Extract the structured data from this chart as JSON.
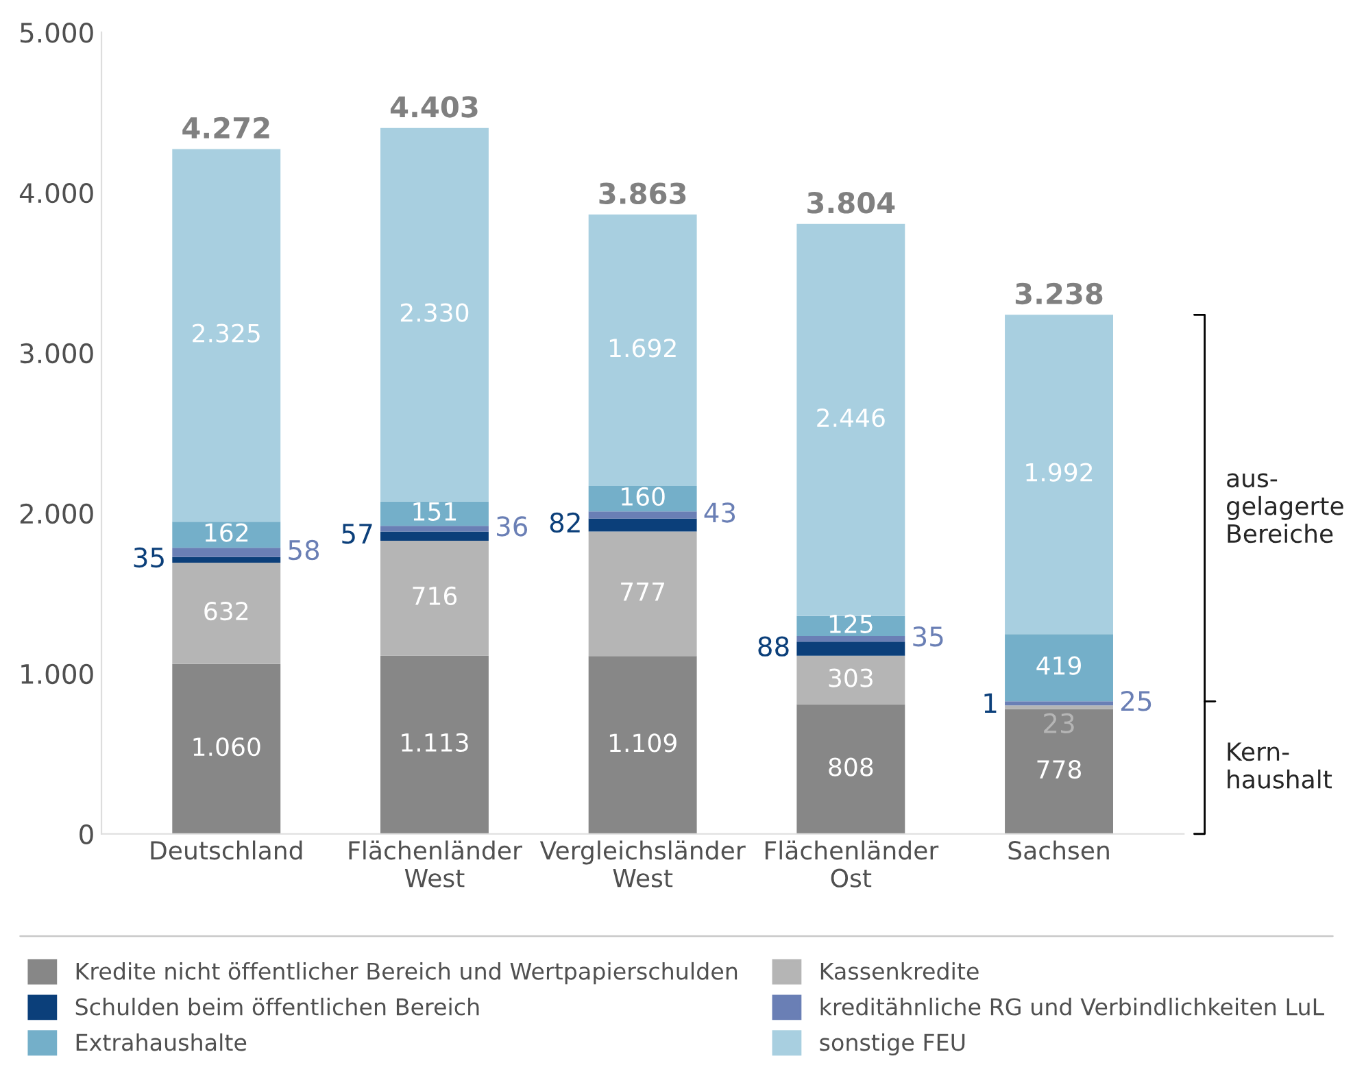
{
  "chart_data": {
    "type": "bar",
    "stacked": true,
    "categories": [
      "Deutschland",
      "Flächenländer\nWest",
      "Vergleichsländer\nWest",
      "Flächenländer\nOst",
      "Sachsen"
    ],
    "series": [
      {
        "name": "Kredite nicht öffentlicher Bereich und Wertpapierschulden",
        "color": "#878787",
        "values": [
          1060,
          1113,
          1109,
          808,
          778
        ],
        "value_labels": [
          "1.060",
          "1.113",
          "1.109",
          "808",
          "778"
        ]
      },
      {
        "name": "Kassenkredite",
        "color": "#b5b5b5",
        "values": [
          632,
          716,
          777,
          303,
          23
        ],
        "value_labels": [
          "632",
          "716",
          "777",
          "303",
          "23"
        ]
      },
      {
        "name": "Schulden beim öffentlichen Bereich",
        "color": "#0b3f7a",
        "values": [
          35,
          57,
          82,
          88,
          1
        ],
        "value_labels": [
          "35",
          "57",
          "82",
          "88",
          "1"
        ]
      },
      {
        "name": "kreditähnliche RG und Verbindlichkeiten LuL",
        "color": "#6a7fb5",
        "values": [
          58,
          36,
          43,
          35,
          25
        ],
        "value_labels": [
          "58",
          "36",
          "43",
          "35",
          "25"
        ]
      },
      {
        "name": "Extrahaushalte",
        "color": "#74afc9",
        "values": [
          162,
          151,
          160,
          125,
          419
        ],
        "value_labels": [
          "162",
          "151",
          "160",
          "125",
          "419"
        ]
      },
      {
        "name": "sonstige FEU",
        "color": "#a8cfe0",
        "values": [
          2325,
          2330,
          1692,
          2446,
          1992
        ],
        "value_labels": [
          "2.325",
          "2.330",
          "1.692",
          "2.446",
          "1.992"
        ]
      }
    ],
    "totals": [
      "4.272",
      "4.403",
      "3.863",
      "3.804",
      "3.238"
    ],
    "ylim": [
      0,
      5000
    ],
    "yticks": [
      0,
      {
        "value": 1000,
        "label": "1.000"
      },
      {
        "value": 2000,
        "label": "2.000"
      },
      {
        "value": 3000,
        "label": "3.000"
      },
      {
        "value": 4000,
        "label": "4.000"
      },
      {
        "value": 5000,
        "label": "5.000"
      }
    ],
    "annotations": [
      "aus-\ngelagerte\nBereiche",
      "Kern-\nhaushalt"
    ],
    "grid": false,
    "legend": "bottom"
  }
}
